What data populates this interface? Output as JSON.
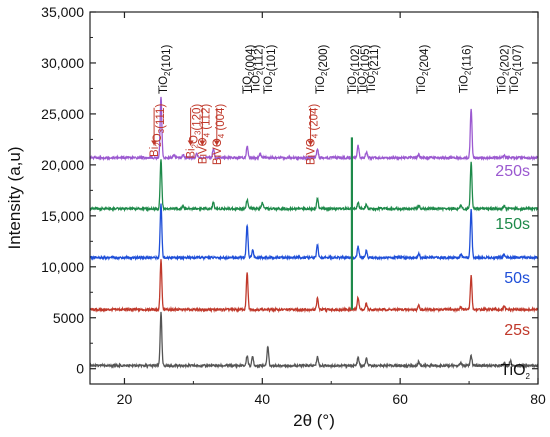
{
  "chart_data": {
    "type": "line",
    "xlabel": "2θ (°)",
    "ylabel": "Intensity (a,u)",
    "xlim": [
      15,
      80
    ],
    "ylim": [
      -1500,
      35000
    ],
    "x_ticks": [
      20,
      40,
      60,
      80
    ],
    "y_ticks": [
      0,
      5000,
      10000,
      15000,
      20000,
      25000,
      30000,
      35000
    ],
    "y_tick_labels": [
      "0",
      "5000",
      "10,000",
      "15,000",
      "20,000",
      "25,000",
      "30,000",
      "35,000"
    ],
    "grid": false,
    "series": [
      {
        "name": "TiO2",
        "color": "#555555",
        "baseline": 300,
        "peaks": [
          [
            25.3,
            5200
          ],
          [
            37.8,
            1000
          ],
          [
            38.6,
            900
          ],
          [
            40.8,
            1900
          ],
          [
            48.0,
            900
          ],
          [
            53.9,
            800
          ],
          [
            55.1,
            700
          ],
          [
            62.7,
            400
          ],
          [
            68.8,
            300
          ],
          [
            70.3,
            1000
          ],
          [
            75.1,
            300
          ],
          [
            76.0,
            500
          ]
        ]
      },
      {
        "name": "25s",
        "color": "#c0392b",
        "baseline": 5800,
        "peaks": [
          [
            25.3,
            4900
          ],
          [
            37.8,
            3600
          ],
          [
            48.0,
            1100
          ],
          [
            53.9,
            1200
          ],
          [
            55.1,
            600
          ],
          [
            62.7,
            400
          ],
          [
            68.8,
            300
          ],
          [
            70.3,
            3300
          ],
          [
            75.1,
            300
          ]
        ]
      },
      {
        "name": "50s",
        "color": "#1f4fd8",
        "baseline": 10900,
        "peaks": [
          [
            25.3,
            5300
          ],
          [
            37.8,
            3200
          ],
          [
            38.6,
            800
          ],
          [
            48.0,
            1200
          ],
          [
            53.9,
            1100
          ],
          [
            55.1,
            700
          ],
          [
            62.7,
            400
          ],
          [
            68.8,
            300
          ],
          [
            70.3,
            4700
          ],
          [
            75.1,
            300
          ]
        ]
      },
      {
        "name": "150s",
        "color": "#1e8a4a",
        "baseline": 15700,
        "peaks": [
          [
            25.3,
            4800
          ],
          [
            28.5,
            300
          ],
          [
            32.9,
            600
          ],
          [
            37.8,
            900
          ],
          [
            40.0,
            600
          ],
          [
            48.0,
            1000
          ],
          [
            53.9,
            600
          ],
          [
            55.1,
            400
          ],
          [
            62.7,
            300
          ],
          [
            68.8,
            300
          ],
          [
            70.3,
            4500
          ],
          [
            75.1,
            300
          ]
        ]
      },
      {
        "name": "250s",
        "color": "#9b59d0",
        "baseline": 20700,
        "peaks": [
          [
            25.3,
            6000
          ],
          [
            27.2,
            300
          ],
          [
            28.5,
            300
          ],
          [
            30.5,
            400
          ],
          [
            32.9,
            900
          ],
          [
            37.8,
            1100
          ],
          [
            39.7,
            400
          ],
          [
            48.0,
            900
          ],
          [
            53.9,
            1200
          ],
          [
            55.1,
            600
          ],
          [
            62.7,
            300
          ],
          [
            70.3,
            4900
          ],
          [
            75.1,
            300
          ]
        ]
      }
    ],
    "sharp_lines": [
      {
        "x": 53.0,
        "from": 5800,
        "to": 22700,
        "color": "#1e8a4a"
      }
    ],
    "peak_labels": [
      {
        "text": "Bi2O3(111)",
        "x": 24.3,
        "color": "#c0392b",
        "arrow": true
      },
      {
        "text": "TiO2(101)",
        "x": 25.6,
        "color": "#111111",
        "arrow": false
      },
      {
        "text": "Bi2O3(120)",
        "x": 29.6,
        "color": "#c0392b",
        "arrow": true
      },
      {
        "text": "BiVO4 (112)",
        "x": 31.3,
        "color": "#c0392b",
        "arrow": true
      },
      {
        "text": "BiVO4 (004)",
        "x": 33.4,
        "color": "#c0392b",
        "arrow": true
      },
      {
        "text": "TiO2(004)",
        "x": 37.8,
        "color": "#111111",
        "arrow": false
      },
      {
        "text": "TiO2(112)",
        "x": 39.0,
        "color": "#111111",
        "arrow": false
      },
      {
        "text": "TiO2(101)",
        "x": 40.8,
        "color": "#111111",
        "arrow": false
      },
      {
        "text": "BiVO4 (204)",
        "x": 47.0,
        "color": "#c0392b",
        "arrow": true
      },
      {
        "text": "TiO2(200)",
        "x": 48.4,
        "color": "#111111",
        "arrow": false
      },
      {
        "text": "TiO2(102)",
        "x": 53.0,
        "color": "#111111",
        "arrow": false
      },
      {
        "text": "TiO2(105)",
        "x": 54.5,
        "color": "#111111",
        "arrow": false
      },
      {
        "text": "TiO2(211)",
        "x": 55.8,
        "color": "#111111",
        "arrow": false
      },
      {
        "text": "TiO2(204)",
        "x": 63.0,
        "color": "#111111",
        "arrow": false
      },
      {
        "text": "TiO2(116)",
        "x": 69.2,
        "color": "#111111",
        "arrow": false
      },
      {
        "text": "TiO2(202)",
        "x": 74.7,
        "color": "#111111",
        "arrow": false
      },
      {
        "text": "TiO2(107)",
        "x": 76.5,
        "color": "#111111",
        "arrow": false
      }
    ]
  }
}
